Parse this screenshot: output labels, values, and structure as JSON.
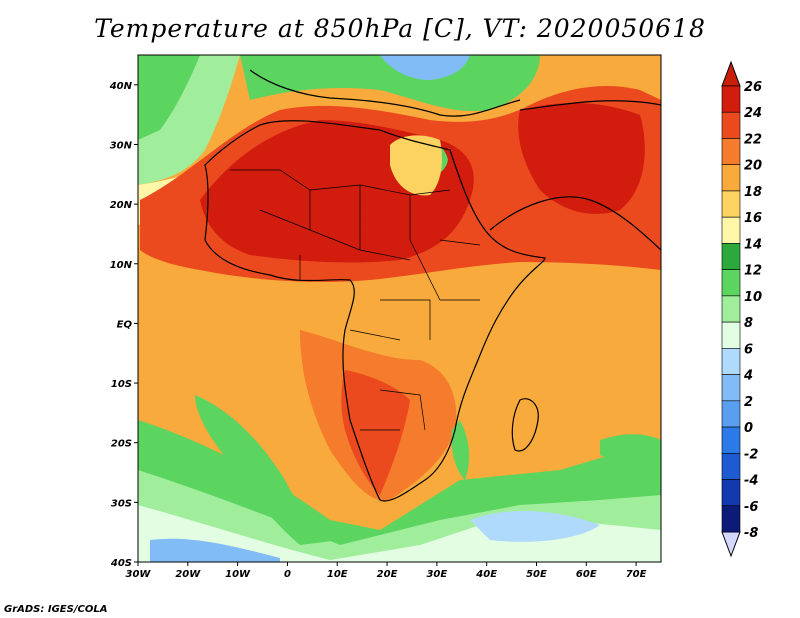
{
  "title": "Temperature at 850hPa [C], VT: 2020050618",
  "credit": "GrADS: IGES/COLA",
  "map": {
    "lon_range": [
      -30,
      75
    ],
    "lat_range": [
      -40,
      45
    ],
    "lon_ticks": [
      {
        "value": -30,
        "label": "30W"
      },
      {
        "value": -20,
        "label": "20W"
      },
      {
        "value": -10,
        "label": "10W"
      },
      {
        "value": 0,
        "label": "0"
      },
      {
        "value": 10,
        "label": "10E"
      },
      {
        "value": 20,
        "label": "20E"
      },
      {
        "value": 30,
        "label": "30E"
      },
      {
        "value": 40,
        "label": "40E"
      },
      {
        "value": 50,
        "label": "50E"
      },
      {
        "value": 60,
        "label": "60E"
      },
      {
        "value": 70,
        "label": "70E"
      }
    ],
    "lat_ticks": [
      {
        "value": 40,
        "label": "40N"
      },
      {
        "value": 30,
        "label": "30N"
      },
      {
        "value": 20,
        "label": "20N"
      },
      {
        "value": 10,
        "label": "10N"
      },
      {
        "value": 0,
        "label": "EQ"
      },
      {
        "value": -10,
        "label": "10S"
      },
      {
        "value": -20,
        "label": "20S"
      },
      {
        "value": -30,
        "label": "30S"
      },
      {
        "value": -40,
        "label": "40S"
      }
    ]
  },
  "colorbar": {
    "levels": [
      {
        "label": "26",
        "color": "#a00000"
      },
      {
        "label": "24",
        "color": "#d21c0e"
      },
      {
        "label": "22",
        "color": "#eb4a1e"
      },
      {
        "label": "20",
        "color": "#f47c2c"
      },
      {
        "label": "18",
        "color": "#f8aa3c"
      },
      {
        "label": "16",
        "color": "#fcd260"
      },
      {
        "label": "14",
        "color": "#fff6a8"
      },
      {
        "label": "12",
        "color": "#2ca83c"
      },
      {
        "label": "10",
        "color": "#5cd460"
      },
      {
        "label": "8",
        "color": "#a0ee9c"
      },
      {
        "label": "6",
        "color": "#e2fde2"
      },
      {
        "label": "4",
        "color": "#b0dafc"
      },
      {
        "label": "2",
        "color": "#82bcf6"
      },
      {
        "label": "0",
        "color": "#5a9ef0"
      },
      {
        "label": "-2",
        "color": "#2c7ae8"
      },
      {
        "label": "-4",
        "color": "#1e5ad2"
      },
      {
        "label": "-6",
        "color": "#1438b0"
      },
      {
        "label": "-8",
        "color": "#0c1a78"
      }
    ],
    "top_color": "#c81e0a",
    "bottom_color": "#d4d8ff"
  }
}
